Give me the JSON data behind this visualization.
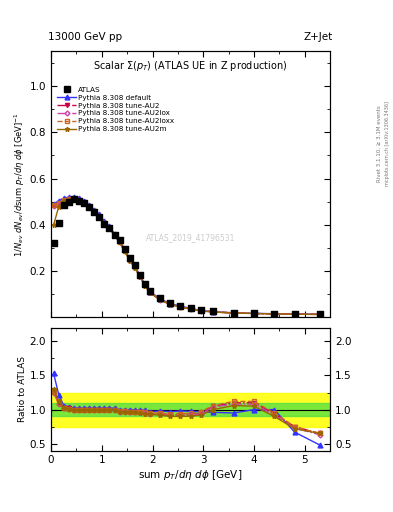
{
  "title_top": "13000 GeV pp",
  "title_right": "Z+Jet",
  "plot_title": "Scalar Σ(p_{T}) (ATLAS UE in Z production)",
  "ylabel_main": "1/N_{ev} dN_{ev}/dsum p_{T}/dη dϕ  [GeV]^{-1}",
  "ylabel_ratio": "Ratio to ATLAS",
  "xlabel": "sum p_{T}/dη dϕ [GeV]",
  "right_label1": "Rivet 3.1.10, ≥ 3.1M events",
  "right_label2": "mcplots.cern.ch [arXiv:1306.3436]",
  "watermark": "ATLAS_2019_41796531",
  "x_data": [
    0.05,
    0.15,
    0.25,
    0.35,
    0.45,
    0.55,
    0.65,
    0.75,
    0.85,
    0.95,
    1.05,
    1.15,
    1.25,
    1.35,
    1.45,
    1.55,
    1.65,
    1.75,
    1.85,
    1.95,
    2.15,
    2.35,
    2.55,
    2.75,
    2.95,
    3.2,
    3.6,
    4.0,
    4.4,
    4.8,
    5.3
  ],
  "y_atlas": [
    0.32,
    0.41,
    0.485,
    0.5,
    0.51,
    0.505,
    0.495,
    0.475,
    0.455,
    0.435,
    0.405,
    0.385,
    0.355,
    0.335,
    0.295,
    0.255,
    0.225,
    0.185,
    0.145,
    0.115,
    0.082,
    0.062,
    0.05,
    0.04,
    0.031,
    0.026,
    0.021,
    0.018,
    0.016,
    0.015,
    0.014
  ],
  "y_default": [
    0.49,
    0.505,
    0.515,
    0.52,
    0.52,
    0.515,
    0.505,
    0.485,
    0.465,
    0.445,
    0.415,
    0.393,
    0.362,
    0.335,
    0.294,
    0.254,
    0.222,
    0.183,
    0.143,
    0.112,
    0.08,
    0.06,
    0.049,
    0.039,
    0.03,
    0.025,
    0.02,
    0.018,
    0.016,
    0.015,
    0.014
  ],
  "y_au2": [
    0.48,
    0.49,
    0.505,
    0.51,
    0.51,
    0.505,
    0.496,
    0.476,
    0.456,
    0.436,
    0.406,
    0.386,
    0.356,
    0.326,
    0.287,
    0.247,
    0.217,
    0.177,
    0.138,
    0.108,
    0.077,
    0.057,
    0.046,
    0.037,
    0.029,
    0.024,
    0.019,
    0.017,
    0.015,
    0.014,
    0.013
  ],
  "y_au2lox": [
    0.48,
    0.49,
    0.505,
    0.51,
    0.51,
    0.505,
    0.496,
    0.476,
    0.456,
    0.436,
    0.406,
    0.386,
    0.356,
    0.326,
    0.287,
    0.247,
    0.217,
    0.177,
    0.138,
    0.108,
    0.077,
    0.057,
    0.046,
    0.037,
    0.029,
    0.024,
    0.019,
    0.017,
    0.015,
    0.014,
    0.013
  ],
  "y_au2loxx": [
    0.485,
    0.495,
    0.508,
    0.513,
    0.513,
    0.508,
    0.498,
    0.478,
    0.458,
    0.438,
    0.408,
    0.388,
    0.358,
    0.328,
    0.289,
    0.249,
    0.219,
    0.178,
    0.139,
    0.109,
    0.078,
    0.058,
    0.047,
    0.038,
    0.03,
    0.025,
    0.02,
    0.017,
    0.015,
    0.014,
    0.013
  ],
  "y_au2m": [
    0.4,
    0.478,
    0.503,
    0.508,
    0.508,
    0.504,
    0.494,
    0.474,
    0.454,
    0.434,
    0.404,
    0.384,
    0.354,
    0.324,
    0.285,
    0.245,
    0.215,
    0.175,
    0.136,
    0.106,
    0.075,
    0.055,
    0.045,
    0.036,
    0.028,
    0.023,
    0.019,
    0.017,
    0.015,
    0.014,
    0.013
  ],
  "ratio_default": [
    1.53,
    1.22,
    1.06,
    1.04,
    1.02,
    1.02,
    1.02,
    1.02,
    1.02,
    1.02,
    1.02,
    1.02,
    1.02,
    1.0,
    1.0,
    1.0,
    0.99,
    0.99,
    0.99,
    0.97,
    0.98,
    0.97,
    0.98,
    0.975,
    0.97,
    0.96,
    0.95,
    1.0,
    1.0,
    0.67,
    0.48
  ],
  "ratio_au2": [
    1.27,
    1.1,
    1.03,
    1.02,
    0.99,
    0.99,
    1.0,
    1.0,
    1.0,
    1.0,
    1.0,
    1.0,
    1.0,
    0.97,
    0.97,
    0.97,
    0.97,
    0.96,
    0.95,
    0.94,
    0.94,
    0.92,
    0.92,
    0.925,
    0.94,
    1.05,
    1.1,
    1.1,
    0.94,
    0.75,
    0.65
  ],
  "ratio_au2lox": [
    1.25,
    1.08,
    1.02,
    1.01,
    0.99,
    0.99,
    1.0,
    1.0,
    1.0,
    1.0,
    1.0,
    1.0,
    1.0,
    0.97,
    0.97,
    0.97,
    0.97,
    0.96,
    0.95,
    0.94,
    0.94,
    0.92,
    0.92,
    0.925,
    0.93,
    1.04,
    1.08,
    1.08,
    0.92,
    0.73,
    0.63
  ],
  "ratio_au2loxx": [
    1.26,
    1.09,
    1.02,
    1.01,
    1.0,
    1.0,
    1.0,
    1.0,
    1.0,
    1.0,
    1.0,
    1.0,
    1.0,
    0.98,
    0.98,
    0.97,
    0.97,
    0.96,
    0.96,
    0.95,
    0.95,
    0.93,
    0.94,
    0.945,
    0.97,
    1.06,
    1.12,
    1.12,
    0.95,
    0.75,
    0.65
  ],
  "ratio_au2m": [
    1.3,
    1.12,
    1.02,
    1.01,
    0.99,
    0.99,
    1.0,
    1.0,
    1.0,
    1.0,
    1.0,
    1.0,
    1.0,
    0.97,
    0.97,
    0.96,
    0.96,
    0.95,
    0.94,
    0.93,
    0.92,
    0.9,
    0.9,
    0.905,
    0.92,
    1.0,
    1.06,
    1.05,
    0.9,
    0.72,
    0.65
  ],
  "color_default": "#3333ff",
  "color_au2": "#cc0044",
  "color_au2lox": "#cc44aa",
  "color_au2loxx": "#cc6622",
  "color_au2m": "#996600",
  "green_y1": 0.9,
  "green_y2": 1.1,
  "yellow_y1": 0.75,
  "yellow_y2": 1.25,
  "xlim": [
    0,
    5.5
  ],
  "ylim_main": [
    0.0,
    1.15
  ],
  "ylim_ratio": [
    0.4,
    2.2
  ],
  "yticks_main": [
    0.2,
    0.4,
    0.6,
    0.8,
    1.0
  ],
  "yticks_ratio": [
    0.5,
    1.0,
    1.5,
    2.0
  ]
}
